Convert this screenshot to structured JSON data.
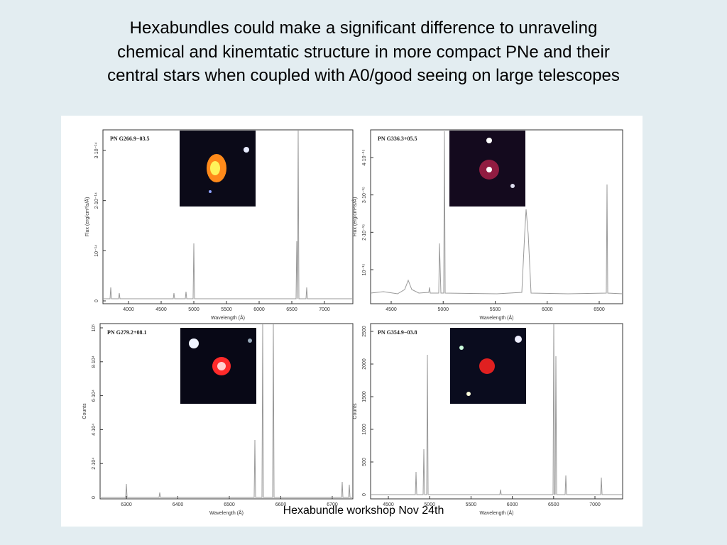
{
  "header": {
    "title_lines": [
      "Hexabundles could make a significant difference to  unraveling",
      "chemical and kinemtatic structure in more compact PNe and their",
      "central stars when coupled with A0/good seeing on large telescopes"
    ]
  },
  "figure": {
    "panels": [
      {
        "label": "PN G266.9−03.5",
        "xlabel": "Wavelength (Å)",
        "ylabel": "Flux (erg/cm²/s/Å)",
        "xticks": [
          "4000",
          "4500",
          "5000",
          "5500",
          "6000",
          "6500",
          "7000"
        ],
        "yticks": [
          "0",
          "10⁻¹⁴",
          "2·10⁻¹⁴",
          "3·10⁻¹⁴"
        ]
      },
      {
        "label": "PN G336.3+05.5",
        "xlabel": "Wavelength (Å)",
        "ylabel": "Flux (erg/cm²/s/Å)",
        "xticks": [
          "4500",
          "5000",
          "5500",
          "6000",
          "6500"
        ],
        "yticks": [
          "10⁻¹⁵",
          "2·10⁻¹⁵",
          "3·10⁻¹⁵",
          "4·10⁻¹⁵"
        ]
      },
      {
        "label": "PN G279.2+08.1",
        "xlabel": "Wavelength (Å)",
        "ylabel": "Counts",
        "xticks": [
          "6300",
          "6400",
          "6500",
          "6600",
          "6700"
        ],
        "yticks": [
          "0",
          "2·10⁴",
          "4·10⁴",
          "6·10⁴",
          "8·10⁴",
          "10⁵"
        ]
      },
      {
        "label": "PN G354.9−03.8",
        "xlabel": "Wavelength (Å)",
        "ylabel": "Counts",
        "xticks": [
          "4500",
          "5000",
          "5500",
          "6000",
          "6500",
          "7000"
        ],
        "yticks": [
          "0",
          "500",
          "1000",
          "1500",
          "2000",
          "2500"
        ]
      }
    ]
  },
  "footer": {
    "text": "Hexabundle workshop Nov 24th"
  }
}
